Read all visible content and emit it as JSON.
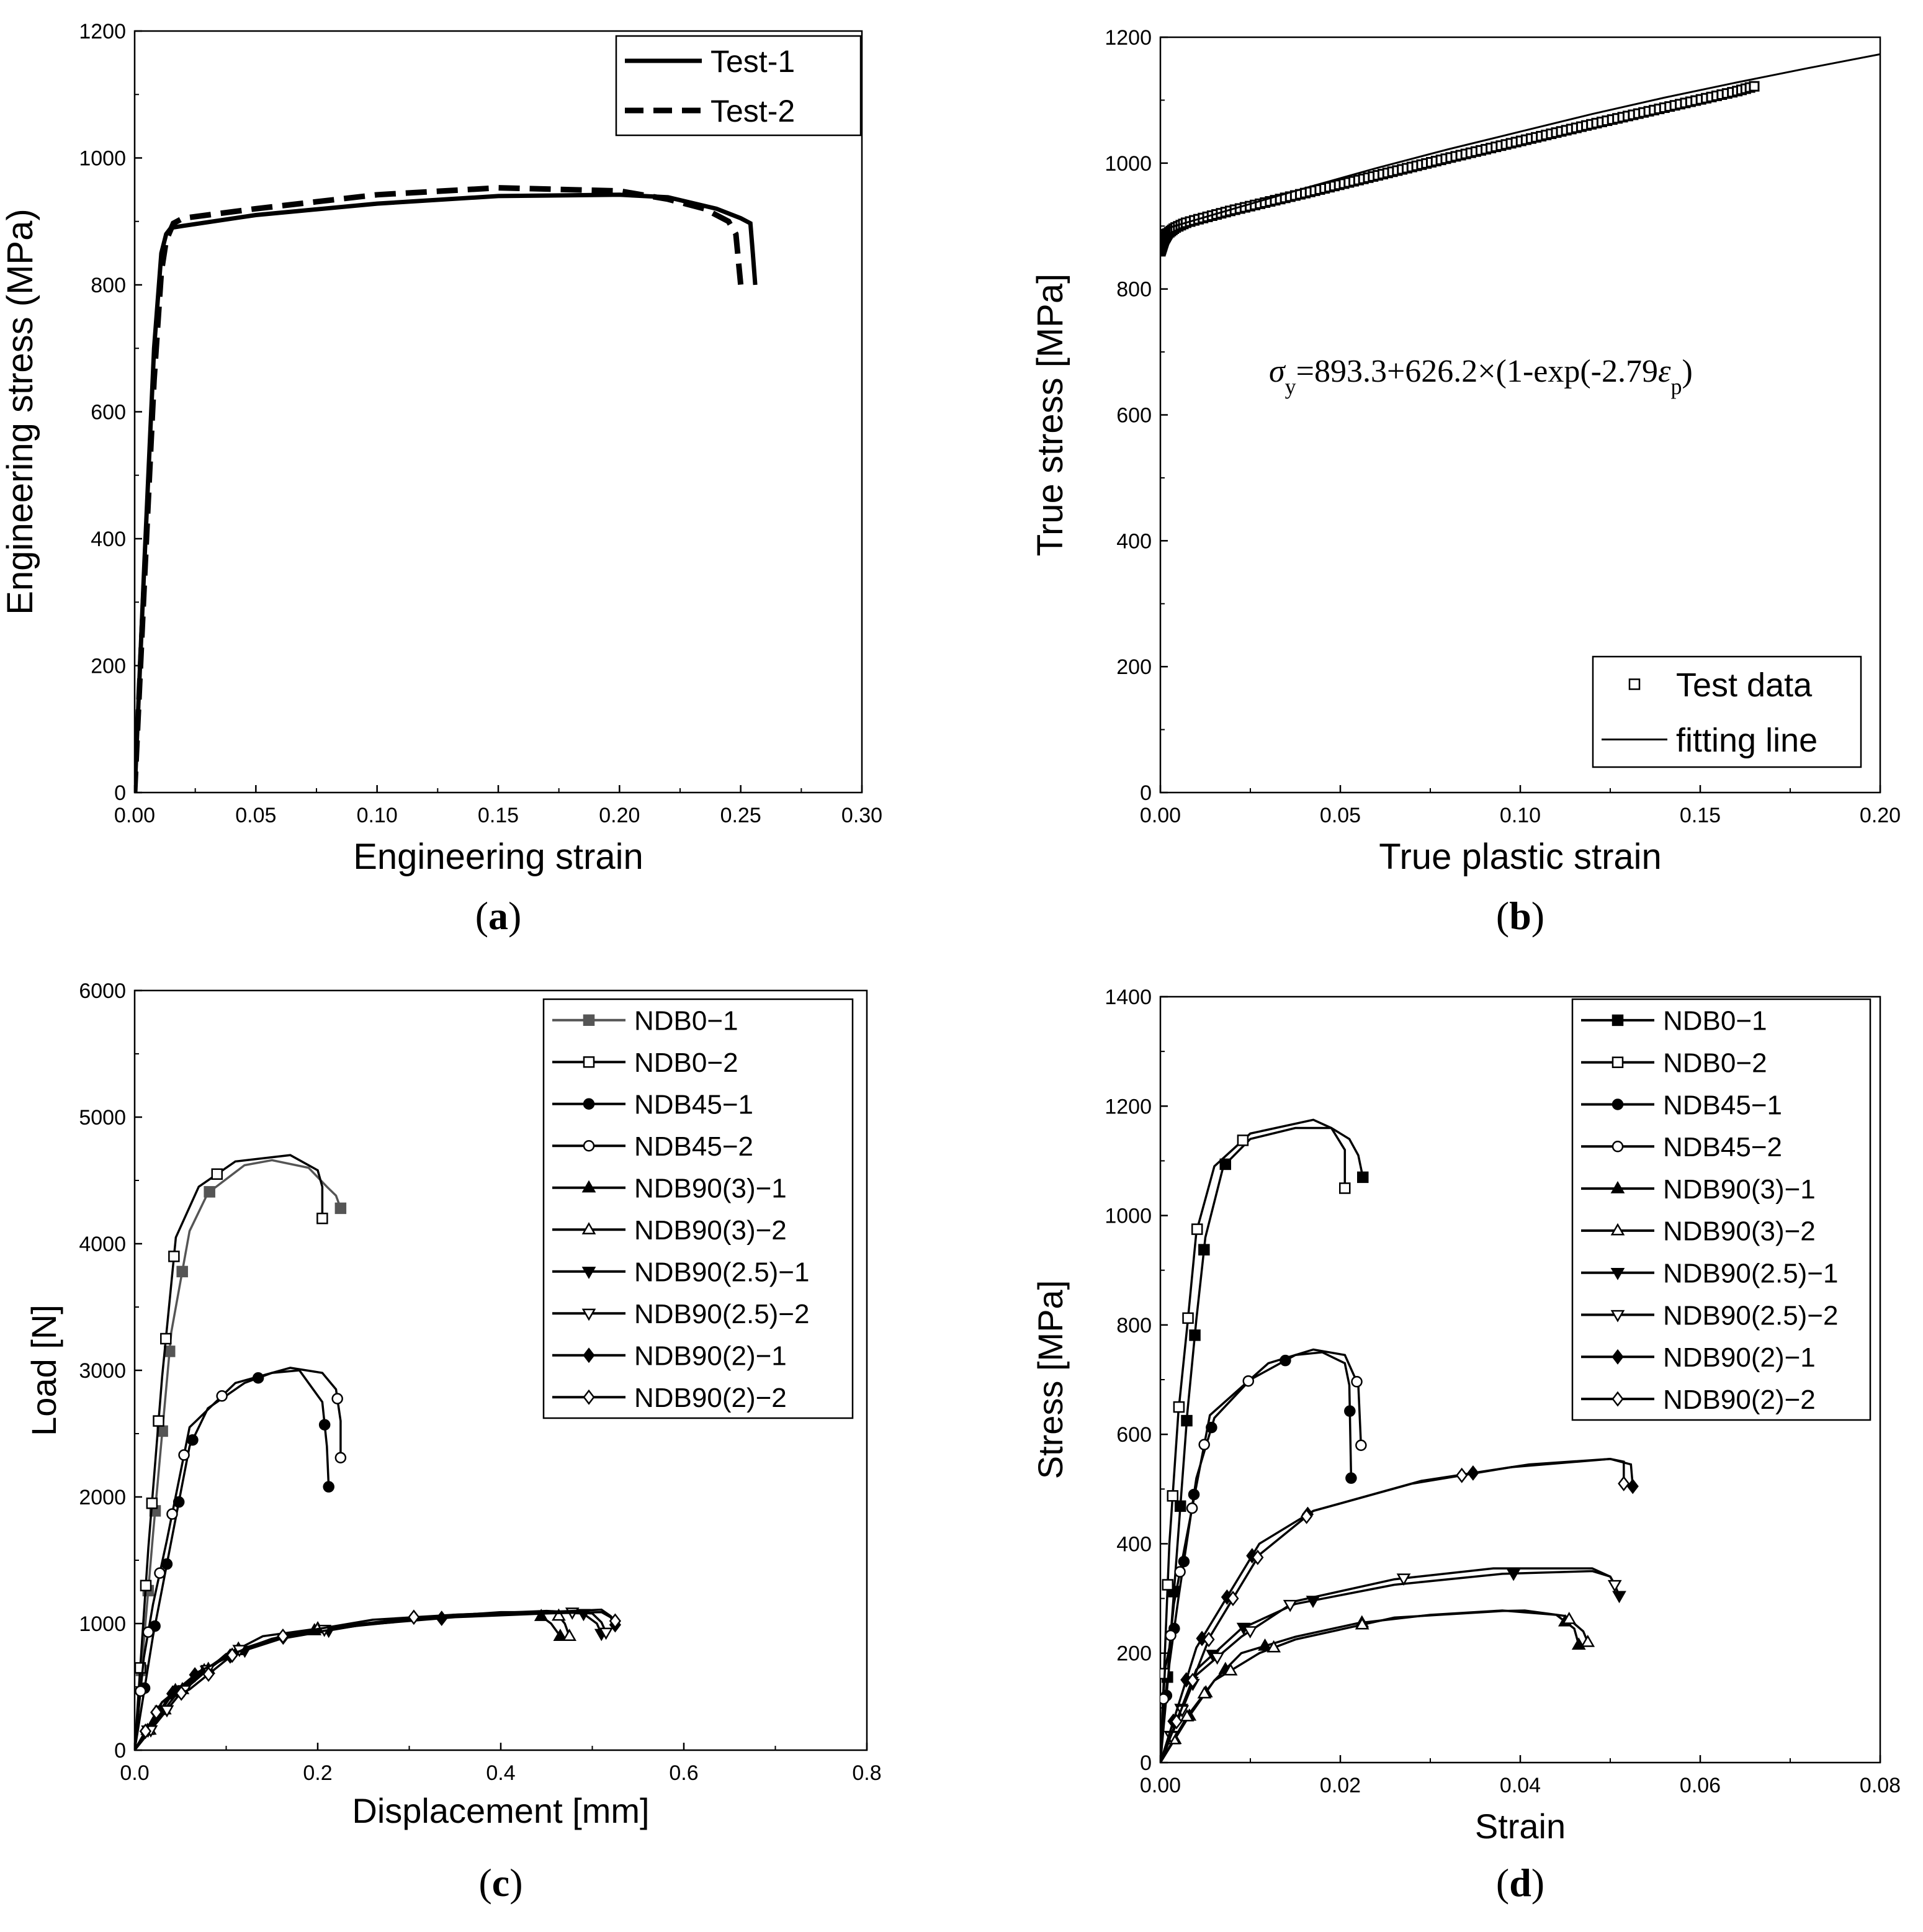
{
  "chart_data": [
    {
      "id": "a",
      "type": "line",
      "panel_label": "a",
      "xlabel": "Engineering strain",
      "ylabel": "Engineering stress (MPa)",
      "xlim": [
        0,
        0.3
      ],
      "ylim": [
        0,
        1200
      ],
      "xticks": [
        "0.00",
        "0.05",
        "0.10",
        "0.15",
        "0.20",
        "0.25",
        "0.30"
      ],
      "yticks": [
        "0",
        "200",
        "400",
        "600",
        "800",
        "1000",
        "1200"
      ],
      "legend_position": "top-right",
      "series": [
        {
          "name": "Test-1",
          "style": "solid",
          "x": [
            0,
            0.004,
            0.008,
            0.011,
            0.013,
            0.015,
            0.02,
            0.05,
            0.1,
            0.15,
            0.2,
            0.22,
            0.24,
            0.25,
            0.254,
            0.255,
            0.256
          ],
          "y": [
            0,
            360,
            700,
            850,
            880,
            890,
            893,
            910,
            928,
            940,
            942,
            938,
            920,
            905,
            897,
            850,
            800
          ]
        },
        {
          "name": "Test-2",
          "style": "dashed",
          "x": [
            0,
            0.004,
            0.008,
            0.011,
            0.013,
            0.016,
            0.02,
            0.05,
            0.1,
            0.15,
            0.2,
            0.22,
            0.235,
            0.245,
            0.248,
            0.249,
            0.25
          ],
          "y": [
            0,
            330,
            650,
            820,
            870,
            897,
            905,
            920,
            942,
            953,
            948,
            935,
            920,
            900,
            880,
            840,
            800
          ]
        }
      ]
    },
    {
      "id": "b",
      "type": "line",
      "panel_label": "b",
      "xlabel": "True plastic strain",
      "ylabel": "True stress [MPa]",
      "xlim": [
        0,
        0.2
      ],
      "ylim": [
        0,
        1200
      ],
      "xticks": [
        "0.00",
        "0.05",
        "0.10",
        "0.15",
        "0.20"
      ],
      "yticks": [
        "0",
        "200",
        "400",
        "600",
        "800",
        "1000",
        "1200"
      ],
      "legend_position": "bottom-right",
      "annotation": "σy=893.3+626.2×(1-exp(-2.79εp)",
      "series": [
        {
          "name": "Test data",
          "marker": "open-square",
          "x": [
            0,
            0.001,
            0.002,
            0.004,
            0.007,
            0.01,
            0.02,
            0.04,
            0.06,
            0.08,
            0.1,
            0.12,
            0.14,
            0.16,
            0.165
          ],
          "y": [
            860,
            878,
            888,
            897,
            905,
            910,
            925,
            952,
            980,
            1008,
            1035,
            1062,
            1088,
            1114,
            1122
          ]
        },
        {
          "name": "fitting line",
          "style": "solid",
          "x": [
            0,
            0.02,
            0.04,
            0.06,
            0.08,
            0.1,
            0.12,
            0.14,
            0.16,
            0.18,
            0.2
          ],
          "y": [
            893.3,
            927,
            960,
            992,
            1022,
            1050,
            1078,
            1104,
            1128,
            1151,
            1173
          ]
        }
      ]
    },
    {
      "id": "c",
      "type": "line",
      "panel_label": "c",
      "xlabel": "Displacement [mm]",
      "ylabel": "Load [N]",
      "xlim": [
        0,
        0.8
      ],
      "ylim": [
        0,
        6000
      ],
      "xticks": [
        "0.0",
        "0.2",
        "0.4",
        "0.6",
        "0.8"
      ],
      "yticks": [
        "0",
        "1000",
        "2000",
        "3000",
        "4000",
        "5000",
        "6000"
      ],
      "legend_position": "top-right",
      "series": [
        {
          "name": "NDB0−1",
          "marker": "filled-square",
          "color": "#555555",
          "x": [
            0,
            0.02,
            0.04,
            0.06,
            0.08,
            0.12,
            0.15,
            0.19,
            0.21,
            0.22,
            0.225
          ],
          "y": [
            0,
            1700,
            3300,
            4100,
            4400,
            4620,
            4660,
            4600,
            4450,
            4380,
            4280
          ]
        },
        {
          "name": "NDB0−2",
          "marker": "open-square",
          "color": "#000000",
          "x": [
            0,
            0.015,
            0.03,
            0.045,
            0.07,
            0.11,
            0.17,
            0.2,
            0.205,
            0.205
          ],
          "y": [
            0,
            1600,
            2950,
            4050,
            4450,
            4650,
            4700,
            4580,
            4450,
            4200
          ]
        },
        {
          "name": "NDB45−1",
          "marker": "filled-circle",
          "color": "#000000",
          "x": [
            0,
            0.02,
            0.04,
            0.06,
            0.08,
            0.12,
            0.15,
            0.18,
            0.205,
            0.21,
            0.212
          ],
          "y": [
            0,
            900,
            1650,
            2400,
            2700,
            2900,
            2980,
            3000,
            2750,
            2400,
            2080
          ]
        },
        {
          "name": "NDB45−2",
          "marker": "open-circle",
          "color": "#000000",
          "x": [
            0,
            0.01,
            0.02,
            0.035,
            0.06,
            0.11,
            0.17,
            0.205,
            0.22,
            0.225,
            0.225
          ],
          "y": [
            0,
            730,
            1150,
            1650,
            2550,
            2900,
            3020,
            2980,
            2850,
            2600,
            2310
          ]
        },
        {
          "name": "NDB90(3)−1",
          "marker": "filled-triangle-up",
          "color": "#000000",
          "x": [
            0,
            0.04,
            0.1,
            0.15,
            0.2,
            0.3,
            0.38,
            0.44,
            0.455,
            0.465
          ],
          "y": [
            0,
            450,
            750,
            880,
            950,
            1030,
            1070,
            1080,
            1000,
            900
          ]
        },
        {
          "name": "NDB90(3)−2",
          "marker": "open-triangle-up",
          "color": "#000000",
          "x": [
            0,
            0.045,
            0.1,
            0.14,
            0.2,
            0.3,
            0.4,
            0.46,
            0.47,
            0.475
          ],
          "y": [
            0,
            440,
            750,
            900,
            960,
            1040,
            1090,
            1090,
            1000,
            900
          ]
        },
        {
          "name": "NDB90(2.5)−1",
          "marker": "filled-triangle-down",
          "color": "#000000",
          "x": [
            0,
            0.04,
            0.1,
            0.16,
            0.24,
            0.35,
            0.45,
            0.49,
            0.505,
            0.51
          ],
          "y": [
            0,
            430,
            740,
            880,
            980,
            1060,
            1090,
            1080,
            1000,
            920
          ]
        },
        {
          "name": "NDB90(2.5)−2",
          "marker": "open-triangle-down",
          "color": "#000000",
          "x": [
            0,
            0.05,
            0.1,
            0.16,
            0.25,
            0.35,
            0.45,
            0.5,
            0.51,
            0.515
          ],
          "y": [
            0,
            450,
            760,
            900,
            1000,
            1070,
            1100,
            1080,
            1010,
            930
          ]
        },
        {
          "name": "NDB90(2)−1",
          "marker": "filled-diamond",
          "color": "#000000",
          "x": [
            0,
            0.03,
            0.07,
            0.12,
            0.16,
            0.25,
            0.35,
            0.45,
            0.51,
            0.52,
            0.525
          ],
          "y": [
            0,
            380,
            620,
            800,
            890,
            990,
            1050,
            1080,
            1090,
            1050,
            990
          ]
        },
        {
          "name": "NDB90(2)−2",
          "marker": "open-diamond",
          "color": "#000000",
          "x": [
            0,
            0.03,
            0.06,
            0.11,
            0.17,
            0.26,
            0.35,
            0.44,
            0.48,
            0.51,
            0.52,
            0.525
          ],
          "y": [
            0,
            380,
            480,
            770,
            920,
            1030,
            1070,
            1090,
            1100,
            1110,
            1060,
            1020
          ]
        }
      ]
    },
    {
      "id": "d",
      "type": "line",
      "panel_label": "d",
      "xlabel": "Strain",
      "ylabel": "Stress [MPa]",
      "xlim": [
        0,
        0.08
      ],
      "ylim": [
        0,
        1400
      ],
      "xticks": [
        "0.00",
        "0.02",
        "0.04",
        "0.06",
        "0.08"
      ],
      "yticks": [
        "0",
        "200",
        "400",
        "600",
        "800",
        "1000",
        "1200",
        "1400"
      ],
      "legend_position": "top-right",
      "series": [
        {
          "name": "NDB0−1",
          "marker": "filled-square",
          "color": "#000000",
          "x": [
            0,
            0.001,
            0.002,
            0.003,
            0.004,
            0.005,
            0.007,
            0.01,
            0.015,
            0.019,
            0.021,
            0.022,
            0.0225
          ],
          "y": [
            0,
            200,
            420,
            640,
            810,
            960,
            1090,
            1140,
            1160,
            1160,
            1140,
            1110,
            1070
          ]
        },
        {
          "name": "NDB0−2",
          "marker": "open-square",
          "color": "#000000",
          "x": [
            0,
            0.001,
            0.002,
            0.003,
            0.004,
            0.006,
            0.01,
            0.017,
            0.019,
            0.0205,
            0.0205
          ],
          "y": [
            0,
            400,
            640,
            800,
            970,
            1090,
            1150,
            1175,
            1160,
            1120,
            1050
          ]
        },
        {
          "name": "NDB45−1",
          "marker": "filled-circle",
          "color": "#000000",
          "x": [
            0,
            0.001,
            0.002,
            0.003,
            0.004,
            0.006,
            0.01,
            0.015,
            0.018,
            0.0205,
            0.021,
            0.0212
          ],
          "y": [
            0,
            180,
            300,
            410,
            520,
            630,
            700,
            745,
            750,
            730,
            690,
            520
          ]
        },
        {
          "name": "NDB45−2",
          "marker": "open-circle",
          "color": "#000000",
          "x": [
            0,
            0.0005,
            0.001,
            0.0015,
            0.003,
            0.0055,
            0.012,
            0.017,
            0.0205,
            0.022,
            0.0223
          ],
          "y": [
            0,
            170,
            210,
            290,
            420,
            635,
            730,
            755,
            745,
            690,
            580
          ]
        },
        {
          "name": "NDB90(3)−1",
          "marker": "filled-triangle-up",
          "color": "#000000",
          "x": [
            0,
            0.003,
            0.006,
            0.009,
            0.015,
            0.022,
            0.03,
            0.038,
            0.044,
            0.046,
            0.0465
          ],
          "y": [
            0,
            80,
            150,
            200,
            230,
            255,
            270,
            278,
            270,
            245,
            215
          ]
        },
        {
          "name": "NDB90(3)−2",
          "marker": "open-triangle-up",
          "color": "#000000",
          "x": [
            0,
            0.003,
            0.006,
            0.011,
            0.015,
            0.026,
            0.038,
            0.0405,
            0.045,
            0.047,
            0.0475
          ],
          "y": [
            0,
            85,
            150,
            200,
            225,
            265,
            277,
            278,
            268,
            240,
            220
          ]
        },
        {
          "name": "NDB90(2.5)−1",
          "marker": "filled-triangle-down",
          "color": "#000000",
          "x": [
            0,
            0.004,
            0.009,
            0.015,
            0.026,
            0.038,
            0.048,
            0.05,
            0.0505,
            0.051
          ],
          "y": [
            0,
            170,
            245,
            290,
            325,
            345,
            350,
            340,
            325,
            305
          ]
        },
        {
          "name": "NDB90(2.5)−2",
          "marker": "open-triangle-down",
          "color": "#000000",
          "x": [
            0,
            0.004,
            0.009,
            0.015,
            0.026,
            0.037,
            0.048,
            0.05,
            0.0505
          ],
          "y": [
            0,
            160,
            230,
            295,
            335,
            355,
            355,
            340,
            325
          ]
        },
        {
          "name": "NDB90(2)−1",
          "marker": "filled-diamond",
          "color": "#000000",
          "x": [
            0,
            0.004,
            0.011,
            0.017,
            0.029,
            0.041,
            0.05,
            0.0523,
            0.0525
          ],
          "y": [
            0,
            210,
            400,
            460,
            515,
            545,
            555,
            545,
            505
          ]
        },
        {
          "name": "NDB90(2)−2",
          "marker": "open-diamond",
          "color": "#000000",
          "x": [
            0,
            0.0055,
            0.011,
            0.017,
            0.028,
            0.039,
            0.05,
            0.0515,
            0.0515
          ],
          "y": [
            0,
            230,
            380,
            460,
            510,
            540,
            555,
            550,
            510
          ]
        }
      ]
    }
  ]
}
